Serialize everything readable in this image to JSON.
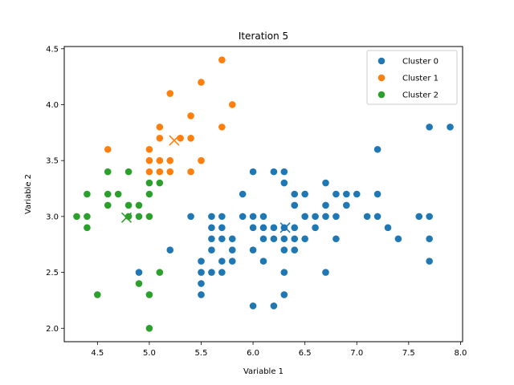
{
  "chart_data": {
    "type": "scatter",
    "title": "Iteration 5",
    "xlabel": "Variable 1",
    "ylabel": "Variable 2",
    "xlim": [
      4.18,
      8.02
    ],
    "ylim": [
      1.88,
      4.52
    ],
    "xticks": [
      4.5,
      5.0,
      5.5,
      6.0,
      6.5,
      7.0,
      7.5,
      8.0
    ],
    "yticks": [
      2.0,
      2.5,
      3.0,
      3.5,
      4.0,
      4.5
    ],
    "xtick_labels": [
      "4.5",
      "5.0",
      "5.5",
      "6.0",
      "6.5",
      "7.0",
      "7.5",
      "8.0"
    ],
    "ytick_labels": [
      "2.0",
      "2.5",
      "3.0",
      "3.5",
      "4.0",
      "4.5"
    ],
    "grid": false,
    "legend_position": "top-right",
    "series": [
      {
        "name": "Cluster 0",
        "color": "#1f77b4",
        "centroid": [
          6.31,
          2.9
        ],
        "points": [
          [
            4.9,
            2.5
          ],
          [
            5.2,
            2.7
          ],
          [
            5.4,
            3.0
          ],
          [
            5.5,
            2.3
          ],
          [
            5.5,
            2.4
          ],
          [
            5.5,
            2.5
          ],
          [
            5.5,
            2.6
          ],
          [
            5.6,
            2.5
          ],
          [
            5.6,
            2.7
          ],
          [
            5.6,
            2.8
          ],
          [
            5.6,
            2.9
          ],
          [
            5.6,
            3.0
          ],
          [
            5.7,
            2.5
          ],
          [
            5.7,
            2.6
          ],
          [
            5.7,
            2.8
          ],
          [
            5.7,
            2.9
          ],
          [
            5.7,
            3.0
          ],
          [
            5.8,
            2.6
          ],
          [
            5.8,
            2.7
          ],
          [
            5.8,
            2.8
          ],
          [
            5.9,
            3.0
          ],
          [
            5.9,
            3.2
          ],
          [
            6.0,
            2.2
          ],
          [
            6.0,
            2.7
          ],
          [
            6.0,
            2.9
          ],
          [
            6.0,
            3.0
          ],
          [
            6.0,
            3.4
          ],
          [
            6.1,
            2.6
          ],
          [
            6.1,
            2.8
          ],
          [
            6.1,
            2.9
          ],
          [
            6.1,
            3.0
          ],
          [
            6.2,
            2.2
          ],
          [
            6.2,
            2.8
          ],
          [
            6.2,
            2.9
          ],
          [
            6.2,
            3.4
          ],
          [
            6.3,
            2.3
          ],
          [
            6.3,
            2.5
          ],
          [
            6.3,
            2.7
          ],
          [
            6.3,
            2.8
          ],
          [
            6.3,
            2.9
          ],
          [
            6.3,
            3.3
          ],
          [
            6.3,
            3.4
          ],
          [
            6.4,
            2.7
          ],
          [
            6.4,
            2.8
          ],
          [
            6.4,
            2.9
          ],
          [
            6.4,
            3.1
          ],
          [
            6.4,
            3.2
          ],
          [
            6.5,
            2.8
          ],
          [
            6.5,
            3.0
          ],
          [
            6.5,
            3.2
          ],
          [
            6.6,
            2.9
          ],
          [
            6.6,
            3.0
          ],
          [
            6.7,
            2.5
          ],
          [
            6.7,
            3.0
          ],
          [
            6.7,
            3.1
          ],
          [
            6.7,
            3.3
          ],
          [
            6.8,
            2.8
          ],
          [
            6.8,
            3.0
          ],
          [
            6.8,
            3.2
          ],
          [
            6.9,
            3.1
          ],
          [
            6.9,
            3.2
          ],
          [
            7.0,
            3.2
          ],
          [
            7.1,
            3.0
          ],
          [
            7.2,
            3.0
          ],
          [
            7.2,
            3.2
          ],
          [
            7.2,
            3.6
          ],
          [
            7.3,
            2.9
          ],
          [
            7.4,
            2.8
          ],
          [
            7.6,
            3.0
          ],
          [
            7.7,
            2.6
          ],
          [
            7.7,
            2.8
          ],
          [
            7.7,
            3.0
          ],
          [
            7.7,
            3.8
          ],
          [
            7.9,
            3.8
          ]
        ]
      },
      {
        "name": "Cluster 1",
        "color": "#ff7f0e",
        "centroid": [
          5.24,
          3.68
        ],
        "points": [
          [
            4.6,
            3.6
          ],
          [
            5.0,
            3.4
          ],
          [
            5.0,
            3.5
          ],
          [
            5.0,
            3.6
          ],
          [
            5.1,
            3.4
          ],
          [
            5.1,
            3.5
          ],
          [
            5.1,
            3.7
          ],
          [
            5.1,
            3.8
          ],
          [
            5.2,
            3.4
          ],
          [
            5.2,
            3.5
          ],
          [
            5.2,
            4.1
          ],
          [
            5.3,
            3.7
          ],
          [
            5.4,
            3.4
          ],
          [
            5.4,
            3.7
          ],
          [
            5.4,
            3.9
          ],
          [
            5.5,
            3.5
          ],
          [
            5.5,
            4.2
          ],
          [
            5.7,
            3.8
          ],
          [
            5.7,
            4.4
          ],
          [
            5.8,
            4.0
          ]
        ]
      },
      {
        "name": "Cluster 2",
        "color": "#2ca02c",
        "centroid": [
          4.78,
          2.99
        ],
        "points": [
          [
            4.3,
            3.0
          ],
          [
            4.4,
            2.9
          ],
          [
            4.4,
            3.0
          ],
          [
            4.4,
            3.2
          ],
          [
            4.5,
            2.3
          ],
          [
            4.6,
            3.1
          ],
          [
            4.6,
            3.2
          ],
          [
            4.6,
            3.4
          ],
          [
            4.7,
            3.2
          ],
          [
            4.8,
            3.0
          ],
          [
            4.8,
            3.1
          ],
          [
            4.8,
            3.4
          ],
          [
            4.9,
            2.4
          ],
          [
            4.9,
            3.0
          ],
          [
            4.9,
            3.1
          ],
          [
            5.0,
            2.0
          ],
          [
            5.0,
            2.3
          ],
          [
            5.0,
            3.0
          ],
          [
            5.0,
            3.2
          ],
          [
            5.0,
            3.3
          ],
          [
            5.1,
            2.5
          ],
          [
            5.1,
            3.3
          ]
        ]
      }
    ]
  }
}
